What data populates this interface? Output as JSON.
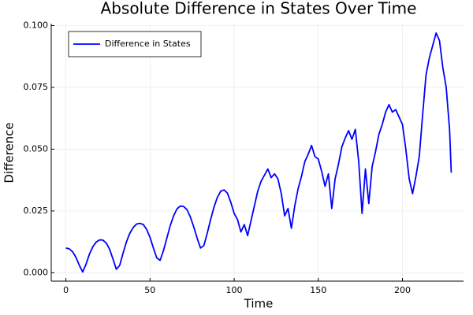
{
  "chart_data": {
    "type": "line",
    "title": "Absolute Difference in States Over Time",
    "x_label": "Time",
    "y_label": "Difference",
    "x": [
      0,
      2,
      4,
      6,
      8,
      10,
      12,
      14,
      16,
      18,
      20,
      22,
      24,
      26,
      28,
      30,
      32,
      34,
      36,
      38,
      40,
      42,
      44,
      46,
      48,
      50,
      52,
      54,
      56,
      58,
      60,
      62,
      64,
      66,
      68,
      70,
      72,
      74,
      76,
      78,
      80,
      82,
      84,
      86,
      88,
      90,
      92,
      94,
      96,
      98,
      100,
      102,
      104,
      106,
      108,
      110,
      112,
      114,
      116,
      118,
      120,
      122,
      124,
      126,
      128,
      130,
      132,
      134,
      136,
      138,
      140,
      142,
      144,
      146,
      148,
      150,
      152,
      154,
      156,
      158,
      160,
      162,
      164,
      166,
      168,
      170,
      172,
      174,
      176,
      178,
      180,
      182,
      184,
      186,
      188,
      190,
      192,
      194,
      196,
      198,
      200,
      202,
      204,
      206,
      208,
      210,
      212,
      214,
      216,
      218,
      220,
      222,
      224,
      226,
      228,
      229
    ],
    "series": [
      {
        "name": "Difference in States",
        "color": "#0000ff",
        "values": [
          0.01,
          0.0097,
          0.0085,
          0.0062,
          0.003,
          0.0003,
          0.0035,
          0.0075,
          0.0105,
          0.0124,
          0.0133,
          0.0132,
          0.012,
          0.0095,
          0.0055,
          0.0014,
          0.003,
          0.008,
          0.0125,
          0.016,
          0.0183,
          0.0197,
          0.02,
          0.0195,
          0.0175,
          0.0143,
          0.01,
          0.006,
          0.005,
          0.009,
          0.014,
          0.019,
          0.023,
          0.0258,
          0.027,
          0.0268,
          0.0255,
          0.0225,
          0.0185,
          0.014,
          0.01,
          0.011,
          0.016,
          0.0215,
          0.0265,
          0.0305,
          0.033,
          0.0335,
          0.0322,
          0.0285,
          0.024,
          0.0215,
          0.0165,
          0.0195,
          0.015,
          0.021,
          0.027,
          0.033,
          0.037,
          0.0395,
          0.042,
          0.0385,
          0.04,
          0.038,
          0.032,
          0.023,
          0.026,
          0.018,
          0.027,
          0.034,
          0.039,
          0.045,
          0.048,
          0.0515,
          0.047,
          0.046,
          0.041,
          0.035,
          0.04,
          0.026,
          0.038,
          0.044,
          0.051,
          0.0545,
          0.0575,
          0.054,
          0.058,
          0.045,
          0.024,
          0.042,
          0.028,
          0.043,
          0.049,
          0.056,
          0.06,
          0.065,
          0.068,
          0.065,
          0.066,
          0.063,
          0.06,
          0.05,
          0.038,
          0.032,
          0.039,
          0.047,
          0.064,
          0.08,
          0.087,
          0.092,
          0.097,
          0.094,
          0.083,
          0.075,
          0.058,
          0.0405
        ]
      }
    ],
    "xlim": [
      -8.7,
      236.3
    ],
    "ylim": [
      -0.0034,
      0.1008
    ],
    "xticks": [
      0,
      50,
      100,
      150,
      200
    ],
    "yticks": [
      {
        "value": 0,
        "label": "0.000"
      },
      {
        "value": 0.025,
        "label": "0.025"
      },
      {
        "value": 0.05,
        "label": "0.050"
      },
      {
        "value": 0.075,
        "label": "0.075"
      },
      {
        "value": 0.1,
        "label": "0.100"
      }
    ],
    "grid": true,
    "legend": "top-left"
  }
}
